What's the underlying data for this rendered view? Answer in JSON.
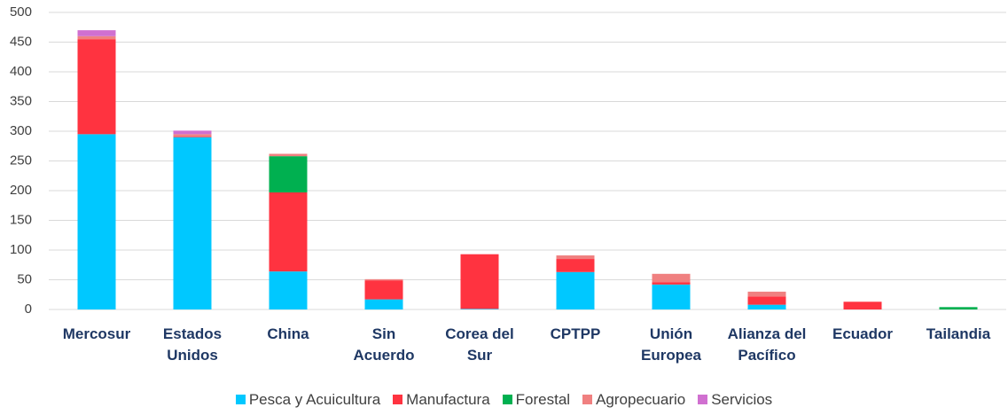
{
  "chart_data": {
    "type": "stacked_bar",
    "categories": [
      "Mercosur",
      "Estados Unidos",
      "China",
      "Sin Acuerdo",
      "Corea del Sur",
      "CPTPP",
      "Unión Europea",
      "Alianza del Pacífico",
      "Ecuador",
      "Tailandia"
    ],
    "series": [
      {
        "name": "Pesca y Acuicultura",
        "color": "#00c8ff",
        "values": [
          295,
          290,
          64,
          17,
          1,
          63,
          42,
          8,
          0,
          0
        ]
      },
      {
        "name": "Manufactura",
        "color": "#ff3340",
        "values": [
          160,
          1,
          133,
          32,
          92,
          22,
          4,
          14,
          13,
          0
        ]
      },
      {
        "name": "Forestal",
        "color": "#00b050",
        "values": [
          0,
          0,
          61,
          0,
          0,
          0,
          0,
          0,
          0,
          4
        ]
      },
      {
        "name": "Agropecuario",
        "color": "#f08080",
        "values": [
          5,
          4,
          4,
          2,
          0,
          6,
          14,
          8,
          0,
          0
        ]
      },
      {
        "name": "Servicios",
        "color": "#d070d0",
        "values": [
          10,
          6,
          0,
          0,
          0,
          0,
          0,
          0,
          0,
          0
        ]
      }
    ],
    "ylim": [
      0,
      500
    ],
    "yticks": [
      0,
      50,
      100,
      150,
      200,
      250,
      300,
      350,
      400,
      450,
      500
    ],
    "grid": true,
    "legend": "bottom"
  }
}
